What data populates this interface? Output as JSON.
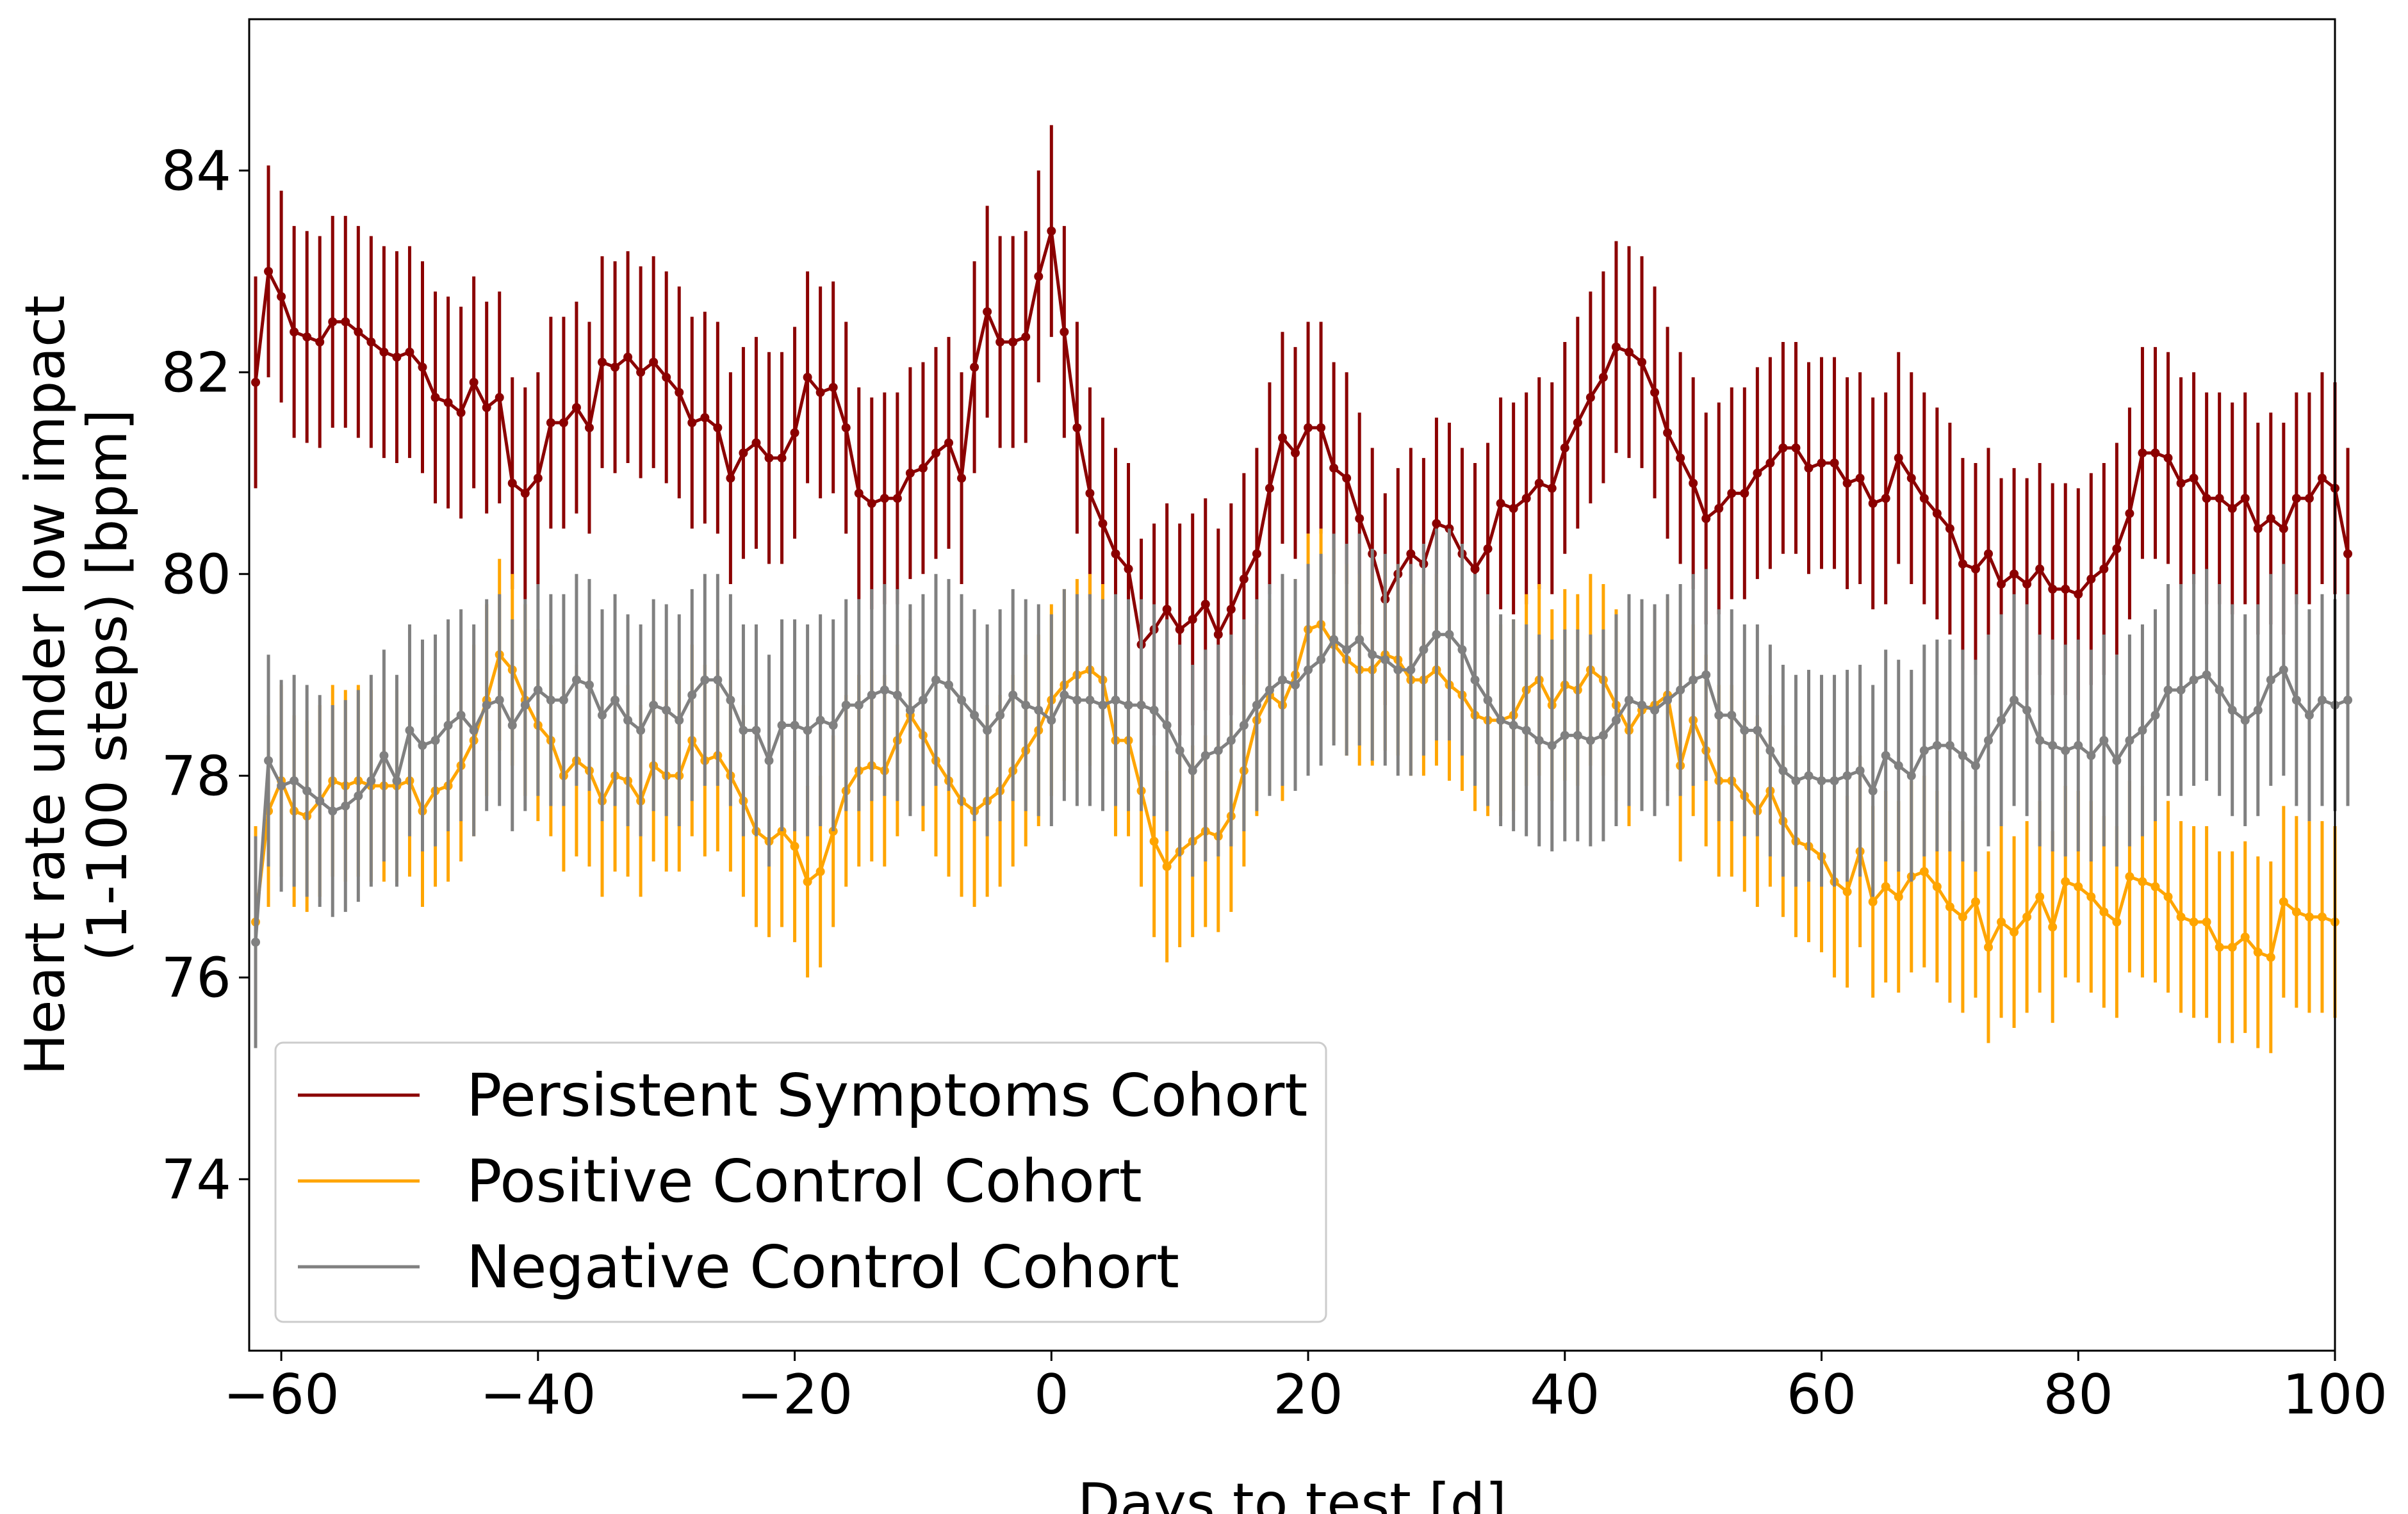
{
  "chart_data": {
    "type": "line",
    "title": "",
    "xlabel": "Days to test [d]",
    "ylabel": [
      "Heart rate under low impact",
      "(1-100 steps) [bpm]"
    ],
    "xlim": [
      -62.5,
      100
    ],
    "ylim": [
      72.3,
      85.5
    ],
    "xticks": [
      -60,
      -40,
      -20,
      0,
      20,
      40,
      60,
      80,
      100
    ],
    "xtick_labels": [
      "−60",
      "−40",
      "−20",
      "0",
      "20",
      "40",
      "60",
      "80",
      "100"
    ],
    "yticks": [
      74,
      76,
      78,
      80,
      82,
      84
    ],
    "ytick_labels": [
      "74",
      "76",
      "78",
      "80",
      "82",
      "84"
    ],
    "grid": false,
    "legend_position": "lower-left",
    "error_bars": true,
    "x_start": -62,
    "x_step": 1,
    "series": [
      {
        "name": "Persistent Symptoms Cohort",
        "color": "#8b0000",
        "errorbar_halfwidth": 1.05,
        "values": [
          81.9,
          83.0,
          82.75,
          82.4,
          82.35,
          82.3,
          82.5,
          82.5,
          82.4,
          82.3,
          82.2,
          82.15,
          82.2,
          82.05,
          81.75,
          81.7,
          81.6,
          81.9,
          81.65,
          81.75,
          80.9,
          80.8,
          80.95,
          81.5,
          81.5,
          81.65,
          81.45,
          82.1,
          82.05,
          82.15,
          82.0,
          82.1,
          81.95,
          81.8,
          81.5,
          81.55,
          81.45,
          80.95,
          81.2,
          81.3,
          81.15,
          81.15,
          81.4,
          81.95,
          81.8,
          81.85,
          81.45,
          80.8,
          80.7,
          80.75,
          80.75,
          81.0,
          81.05,
          81.2,
          81.3,
          80.95,
          82.05,
          82.6,
          82.3,
          82.3,
          82.35,
          82.95,
          83.4,
          82.4,
          81.45,
          80.8,
          80.5,
          80.2,
          80.05,
          79.3,
          79.45,
          79.65,
          79.45,
          79.55,
          79.7,
          79.4,
          79.65,
          79.95,
          80.2,
          80.85,
          81.35,
          81.2,
          81.45,
          81.45,
          81.05,
          80.95,
          80.55,
          80.2,
          79.75,
          80.0,
          80.2,
          80.1,
          80.5,
          80.45,
          80.2,
          80.05,
          80.25,
          80.7,
          80.65,
          80.75,
          80.9,
          80.85,
          81.25,
          81.5,
          81.75,
          81.95,
          82.25,
          82.2,
          82.1,
          81.8,
          81.4,
          81.15,
          80.9,
          80.55,
          80.65,
          80.8,
          80.8,
          81.0,
          81.1,
          81.25,
          81.25,
          81.05,
          81.1,
          81.1,
          80.9,
          80.95,
          80.7,
          80.75,
          81.15,
          80.95,
          80.75,
          80.6,
          80.45,
          80.1,
          80.05,
          80.2,
          79.9,
          80.0,
          79.9,
          80.05,
          79.85,
          79.85,
          79.8,
          79.95,
          80.05,
          80.25,
          80.6,
          81.2,
          81.2,
          81.15,
          80.9,
          80.95,
          80.75,
          80.75,
          80.65,
          80.75,
          80.45,
          80.55,
          80.45,
          80.75,
          80.75,
          80.95,
          80.85,
          80.2
        ]
      },
      {
        "name": "Positive Control Cohort",
        "color": "#ffa500",
        "errorbar_halfwidth": 0.95,
        "values": [
          76.55,
          77.65,
          77.95,
          77.65,
          77.6,
          77.75,
          77.95,
          77.9,
          77.95,
          77.9,
          77.9,
          77.9,
          77.95,
          77.65,
          77.85,
          77.9,
          78.1,
          78.35,
          78.75,
          79.2,
          79.05,
          78.75,
          78.5,
          78.35,
          78.0,
          78.15,
          78.05,
          77.75,
          78.0,
          77.95,
          77.75,
          78.1,
          78.0,
          78.0,
          78.35,
          78.15,
          78.2,
          78.0,
          77.75,
          77.45,
          77.35,
          77.45,
          77.3,
          76.95,
          77.05,
          77.45,
          77.85,
          78.05,
          78.1,
          78.05,
          78.35,
          78.6,
          78.4,
          78.15,
          77.95,
          77.75,
          77.65,
          77.75,
          77.85,
          78.05,
          78.25,
          78.45,
          78.75,
          78.9,
          79.0,
          79.05,
          78.95,
          78.35,
          78.35,
          77.85,
          77.35,
          77.1,
          77.25,
          77.35,
          77.45,
          77.4,
          77.6,
          78.05,
          78.55,
          78.8,
          78.7,
          79.0,
          79.45,
          79.5,
          79.3,
          79.15,
          79.05,
          79.05,
          79.2,
          79.15,
          78.95,
          78.95,
          79.05,
          78.9,
          78.8,
          78.6,
          78.55,
          78.55,
          78.6,
          78.85,
          78.95,
          78.7,
          78.9,
          78.85,
          79.05,
          78.95,
          78.7,
          78.45,
          78.65,
          78.7,
          78.8,
          78.1,
          78.55,
          78.25,
          77.95,
          77.95,
          77.8,
          77.65,
          77.85,
          77.55,
          77.35,
          77.3,
          77.2,
          76.95,
          76.85,
          77.25,
          76.75,
          76.9,
          76.8,
          77.0,
          77.05,
          76.9,
          76.7,
          76.6,
          76.75,
          76.3,
          76.55,
          76.45,
          76.6,
          76.8,
          76.5,
          76.95,
          76.9,
          76.8,
          76.65,
          76.55,
          77.0,
          76.95,
          76.9,
          76.8,
          76.6,
          76.55,
          76.55,
          76.3,
          76.3,
          76.4,
          76.25,
          76.2,
          76.75,
          76.65,
          76.6,
          76.6,
          76.55
        ]
      },
      {
        "name": "Negative Control Cohort",
        "color": "#808080",
        "errorbar_halfwidth": 1.05,
        "values": [
          76.35,
          78.15,
          77.9,
          77.95,
          77.85,
          77.75,
          77.65,
          77.7,
          77.8,
          77.95,
          78.2,
          77.95,
          78.45,
          78.3,
          78.35,
          78.5,
          78.6,
          78.45,
          78.7,
          78.75,
          78.5,
          78.7,
          78.85,
          78.75,
          78.75,
          78.95,
          78.9,
          78.6,
          78.75,
          78.55,
          78.45,
          78.7,
          78.65,
          78.55,
          78.8,
          78.95,
          78.95,
          78.75,
          78.45,
          78.45,
          78.15,
          78.5,
          78.5,
          78.45,
          78.55,
          78.5,
          78.7,
          78.7,
          78.8,
          78.85,
          78.8,
          78.65,
          78.75,
          78.95,
          78.9,
          78.75,
          78.6,
          78.45,
          78.6,
          78.8,
          78.7,
          78.65,
          78.55,
          78.8,
          78.75,
          78.75,
          78.7,
          78.75,
          78.7,
          78.7,
          78.65,
          78.5,
          78.25,
          78.05,
          78.2,
          78.25,
          78.35,
          78.5,
          78.7,
          78.85,
          78.95,
          78.9,
          79.05,
          79.15,
          79.35,
          79.25,
          79.35,
          79.2,
          79.15,
          79.05,
          79.05,
          79.25,
          79.4,
          79.4,
          79.25,
          78.95,
          78.75,
          78.55,
          78.5,
          78.45,
          78.35,
          78.3,
          78.4,
          78.4,
          78.35,
          78.4,
          78.55,
          78.75,
          78.7,
          78.65,
          78.75,
          78.85,
          78.95,
          79.0,
          78.6,
          78.6,
          78.45,
          78.45,
          78.25,
          78.05,
          77.95,
          78.0,
          77.95,
          77.95,
          78.0,
          78.05,
          77.85,
          78.2,
          78.1,
          78.0,
          78.25,
          78.3,
          78.3,
          78.2,
          78.1,
          78.35,
          78.55,
          78.75,
          78.65,
          78.35,
          78.3,
          78.25,
          78.3,
          78.2,
          78.35,
          78.15,
          78.35,
          78.45,
          78.6,
          78.85,
          78.85,
          78.95,
          79.0,
          78.85,
          78.65,
          78.55,
          78.65,
          78.95,
          79.05,
          78.75,
          78.6,
          78.75,
          78.7,
          78.75
        ]
      }
    ]
  }
}
